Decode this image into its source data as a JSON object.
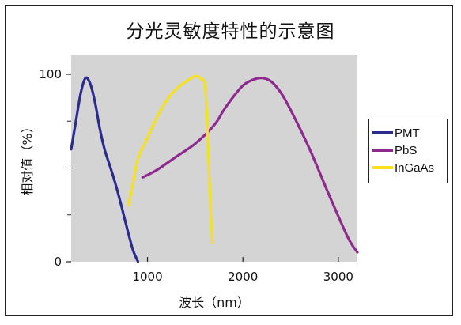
{
  "chart_data": {
    "type": "line",
    "title": "分光灵敏度特性的示意图",
    "xlabel": "波长（nm）",
    "ylabel": "相对值（%）",
    "xlim": [
      200,
      3200
    ],
    "ylim": [
      0,
      100
    ],
    "xticks": [
      1000,
      2000,
      3000
    ],
    "xtick_labels": [
      "1000",
      "2000",
      "3000"
    ],
    "yticks": [
      0,
      100
    ],
    "ytick_labels": [
      "0",
      "100"
    ],
    "y_minor_ticks": [
      25,
      50,
      75
    ],
    "grid": false,
    "background": "#d4d4d4",
    "legend_position": "right",
    "series": [
      {
        "name": "PMT",
        "color": "#2b2a8e",
        "x": [
          200,
          250,
          300,
          350,
          400,
          450,
          500,
          550,
          600,
          650,
          700,
          750,
          800,
          850,
          900
        ],
        "y": [
          60,
          75,
          90,
          98,
          95,
          85,
          71,
          60,
          52,
          44,
          35,
          25,
          15,
          6,
          0
        ]
      },
      {
        "name": "PbS",
        "color": "#8e2a8e",
        "x": [
          950,
          1100,
          1300,
          1500,
          1700,
          1800,
          1900,
          2000,
          2100,
          2200,
          2300,
          2400,
          2500,
          2700,
          2900,
          3100,
          3200
        ],
        "y": [
          45,
          49,
          56,
          63,
          73,
          81,
          88,
          94,
          97,
          98,
          96,
          90,
          81,
          60,
          36,
          13,
          5
        ]
      },
      {
        "name": "InGaAs",
        "color": "#f5e21b",
        "x": [
          800,
          850,
          900,
          1000,
          1100,
          1200,
          1300,
          1400,
          1500,
          1550,
          1600,
          1620,
          1640,
          1660,
          1680
        ],
        "y": [
          30,
          42,
          55,
          66,
          77,
          86,
          92,
          96,
          99,
          98,
          95,
          80,
          55,
          30,
          10
        ]
      }
    ]
  }
}
